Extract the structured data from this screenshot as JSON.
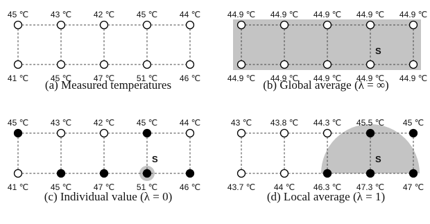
{
  "panels": [
    {
      "caption": "(a) Measured temperatures",
      "top_labels": [
        "45 ℃",
        "43 ℃",
        "42 ℃",
        "45 ℃",
        "44 ℃"
      ],
      "bottom_labels": [
        "41 ℃",
        "45 ℃",
        "47 ℃",
        "51 ℃",
        "46 ℃"
      ],
      "top_filled": [
        false,
        false,
        false,
        false,
        false
      ],
      "bottom_filled": [
        false,
        false,
        false,
        false,
        false
      ],
      "s_label": ""
    },
    {
      "caption": "(b) Global average (λ = ∞)",
      "top_labels": [
        "44.9 ℃",
        "44.9 ℃",
        "44.9 ℃",
        "44.9 ℃",
        "44.9 ℃"
      ],
      "bottom_labels": [
        "44.9 ℃",
        "44.9 ℃",
        "44.9 ℃",
        "44.9 ℃",
        "44.9 ℃"
      ],
      "top_filled": [
        false,
        false,
        false,
        false,
        false
      ],
      "bottom_filled": [
        false,
        false,
        false,
        false,
        false
      ],
      "s_label": "S"
    },
    {
      "caption": "(c) Individual value (λ = 0)",
      "top_labels": [
        "45 ℃",
        "43 ℃",
        "42 ℃",
        "45 ℃",
        "44 ℃"
      ],
      "bottom_labels": [
        "41 ℃",
        "45 ℃",
        "47 ℃",
        "51 ℃",
        "46 ℃"
      ],
      "top_filled": [
        true,
        false,
        false,
        true,
        false
      ],
      "bottom_filled": [
        false,
        true,
        true,
        true,
        true
      ],
      "s_label": "S"
    },
    {
      "caption": "(d) Local average (λ = 1)",
      "top_labels": [
        "43 ℃",
        "43.8 ℃",
        "44.3 ℃",
        "45.5 ℃",
        "45 ℃"
      ],
      "bottom_labels": [
        "43.7 ℃",
        "44 ℃",
        "46.3 ℃",
        "47.3 ℃",
        "47 ℃"
      ],
      "top_filled": [
        false,
        false,
        false,
        true,
        true
      ],
      "bottom_filled": [
        false,
        false,
        true,
        true,
        true
      ],
      "s_label": "S"
    }
  ],
  "colors": {
    "shade": "#c4c4c4",
    "node_fill": "#000000",
    "node_empty": "#ffffff"
  }
}
